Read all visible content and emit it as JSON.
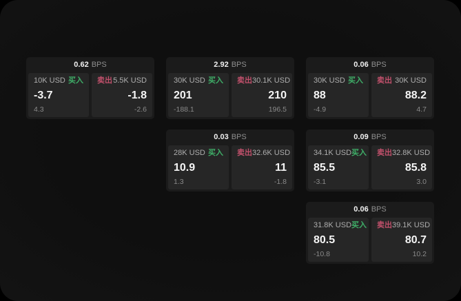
{
  "labels": {
    "buy": "买入",
    "sell": "卖出",
    "bps_unit": "BPS"
  },
  "colors": {
    "buy_green": "#3fae68",
    "sell_red": "#c0506b",
    "card_bg": "#1b1b1b",
    "panel_bg": "#262626"
  },
  "cards": [
    {
      "bps": "0.62",
      "buy": {
        "amount": "10K USD",
        "price": "-3.7",
        "change": "4.3"
      },
      "sell": {
        "amount": "5.5K USD",
        "price": "-1.8",
        "change": "-2.6"
      }
    },
    {
      "bps": "2.92",
      "buy": {
        "amount": "30K USD",
        "price": "201",
        "change": "-188.1"
      },
      "sell": {
        "amount": "30.1K USD",
        "price": "210",
        "change": "196.5"
      }
    },
    {
      "bps": "0.06",
      "buy": {
        "amount": "30K USD",
        "price": "88",
        "change": "-4.9"
      },
      "sell": {
        "amount": "30K USD",
        "price": "88.2",
        "change": "4.7"
      }
    },
    {
      "bps": "0.03",
      "buy": {
        "amount": "28K USD",
        "price": "10.9",
        "change": "1.3"
      },
      "sell": {
        "amount": "32.6K USD",
        "price": "11",
        "change": "-1.8"
      }
    },
    {
      "bps": "0.09",
      "buy": {
        "amount": "34.1K USD",
        "price": "85.5",
        "change": "-3.1"
      },
      "sell": {
        "amount": "32.8K USD",
        "price": "85.8",
        "change": "3.0"
      }
    },
    {
      "bps": "0.06",
      "buy": {
        "amount": "31.8K USD",
        "price": "80.5",
        "change": "-10.8"
      },
      "sell": {
        "amount": "39.1K USD",
        "price": "80.7",
        "change": "10.2"
      }
    }
  ]
}
